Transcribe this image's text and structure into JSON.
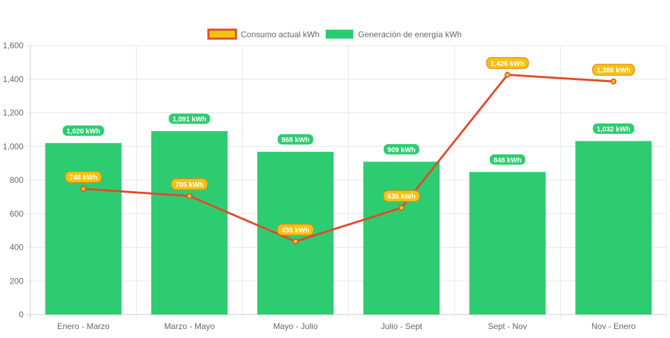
{
  "chart_data": {
    "type": "bar",
    "categories": [
      "Enero - Marzo",
      "Marzo - Mayo",
      "Mayo - Julio",
      "Julio - Sept",
      "Sept - Nov",
      "Nov - Enero"
    ],
    "series": [
      {
        "name": "Consumo actual kWh",
        "type": "line",
        "values": [
          748,
          705,
          435,
          635,
          1426,
          1386
        ],
        "labels": [
          "748 kWh",
          "705 kWh",
          "435 kWh",
          "635 kWh",
          "1,426 kWh",
          "1,386 kWh"
        ],
        "color": "#e04b2f",
        "fill": "#f4c20d"
      },
      {
        "name": "Generación de energía kWh",
        "type": "bar",
        "values": [
          1020,
          1091,
          968,
          909,
          848,
          1032
        ],
        "labels": [
          "1,020 kWh",
          "1,091 kWh",
          "968 kWh",
          "909 kWh",
          "848 kWh",
          "1,032 kWh"
        ],
        "color": "#2ecc71"
      }
    ],
    "ylim": [
      0,
      1600
    ],
    "yticks": [
      0,
      200,
      400,
      600,
      800,
      1000,
      1200,
      1400,
      1600
    ],
    "ytick_labels": [
      "0",
      "200",
      "400",
      "600",
      "800",
      "1,000",
      "1,200",
      "1,400",
      "1,600"
    ],
    "grid": true,
    "legend_position": "top-center",
    "title": "",
    "xlabel": "",
    "ylabel": ""
  }
}
